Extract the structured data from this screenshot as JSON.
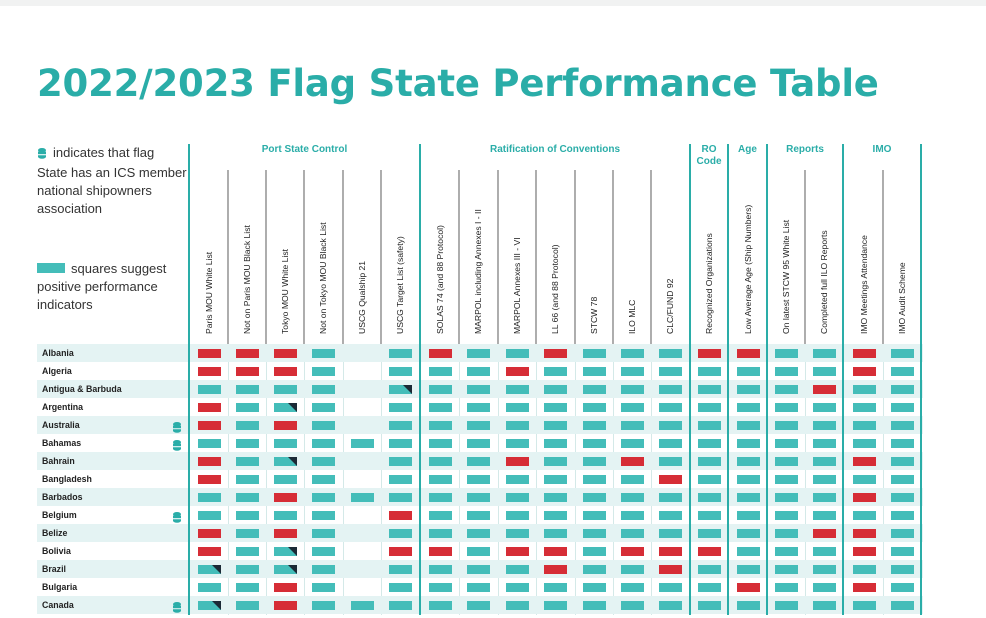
{
  "title": "2022/2023 Flag State Performance Table",
  "legend": {
    "member_note": "indicates that flag State has an ICS member national shipowners association",
    "positive_note": "squares suggest positive performance indicators",
    "member_icon": "ics-member-icon",
    "square_color": "#44bdb9"
  },
  "colors": {
    "accent": "#2aada8",
    "positive": "#44bdb9",
    "negative": "#d62d36",
    "partial_corner": "#1b2a36",
    "row_shade": "#e4f3f3"
  },
  "groups": [
    {
      "label": "Port State Control",
      "lines": [
        "Port State Control"
      ],
      "start": 0,
      "end": 5
    },
    {
      "label": "Ratification of Conventions",
      "lines": [
        "Ratification of Conventions"
      ],
      "start": 6,
      "end": 12
    },
    {
      "label": "RO Code",
      "lines": [
        "RO",
        "Code"
      ],
      "start": 13,
      "end": 13
    },
    {
      "label": "Age",
      "lines": [
        "Age"
      ],
      "start": 14,
      "end": 14
    },
    {
      "label": "Reports",
      "lines": [
        "Reports"
      ],
      "start": 15,
      "end": 16
    },
    {
      "label": "IMO",
      "lines": [
        "IMO"
      ],
      "start": 17,
      "end": 18
    }
  ],
  "columns": [
    "Paris MOU White List",
    "Not on Paris MOU Black List",
    "Tokyo MOU White List",
    "Not on Tokyo MOU Black List",
    "USCG Qualship 21",
    "USCG Target List (safety)",
    "SOLAS 74 (and 88 Protocol)",
    "MARPOL including Annexes I - II",
    "MARPOL Annexes III - VI",
    "LL 66 (and 88 Protocol)",
    "STCW 78",
    "ILO MLC",
    "CLC/FUND 92",
    "Recognized Organizations",
    "Low Average Age (Ship Numbers)",
    "On latest STCW 95 White List",
    "Completed full ILO Reports",
    "IMO Meetings Attendance",
    "IMO Audit Scheme"
  ],
  "rows": [
    {
      "country": "Albania",
      "member": false,
      "cells": "RRRG-GRGGRGGGRRGGRG"
    },
    {
      "country": "Algeria",
      "member": false,
      "cells": "RRRG-GGGRGGGGGGGGRG"
    },
    {
      "country": "Antigua & Barbuda",
      "member": false,
      "cells": "GGGG-PGGGGGGGGGGRGG"
    },
    {
      "country": "Argentina",
      "member": false,
      "cells": "RGPG-GGGGGGGGGGGGGG"
    },
    {
      "country": "Australia",
      "member": true,
      "cells": "RGRG-GGGGGGGGGGGGGG"
    },
    {
      "country": "Bahamas",
      "member": true,
      "cells": "GGGGGGGGGGGGGGGGGGG"
    },
    {
      "country": "Bahrain",
      "member": false,
      "cells": "RGPG-GGGRGGRGGGGGRG"
    },
    {
      "country": "Bangladesh",
      "member": false,
      "cells": "RGGG-GGGGGGGRGGGGGG"
    },
    {
      "country": "Barbados",
      "member": false,
      "cells": "GGRGGGGGGGGGGGGGGRG"
    },
    {
      "country": "Belgium",
      "member": true,
      "cells": "GGGG-RGGGGGGGGGGGGG"
    },
    {
      "country": "Belize",
      "member": false,
      "cells": "RGRG-GGGGGGGGGGGRRG"
    },
    {
      "country": "Bolivia",
      "member": false,
      "cells": "RGPG-RRGRRGRRRGGGRG"
    },
    {
      "country": "Brazil",
      "member": false,
      "cells": "PGPG-GGGGRGGRGGGGGG"
    },
    {
      "country": "Bulgaria",
      "member": false,
      "cells": "GGRG-GGGGGGGGGRGGRG"
    },
    {
      "country": "Canada",
      "member": true,
      "cells": "PGRGGGGGGGGGGGGGGGG"
    }
  ]
}
